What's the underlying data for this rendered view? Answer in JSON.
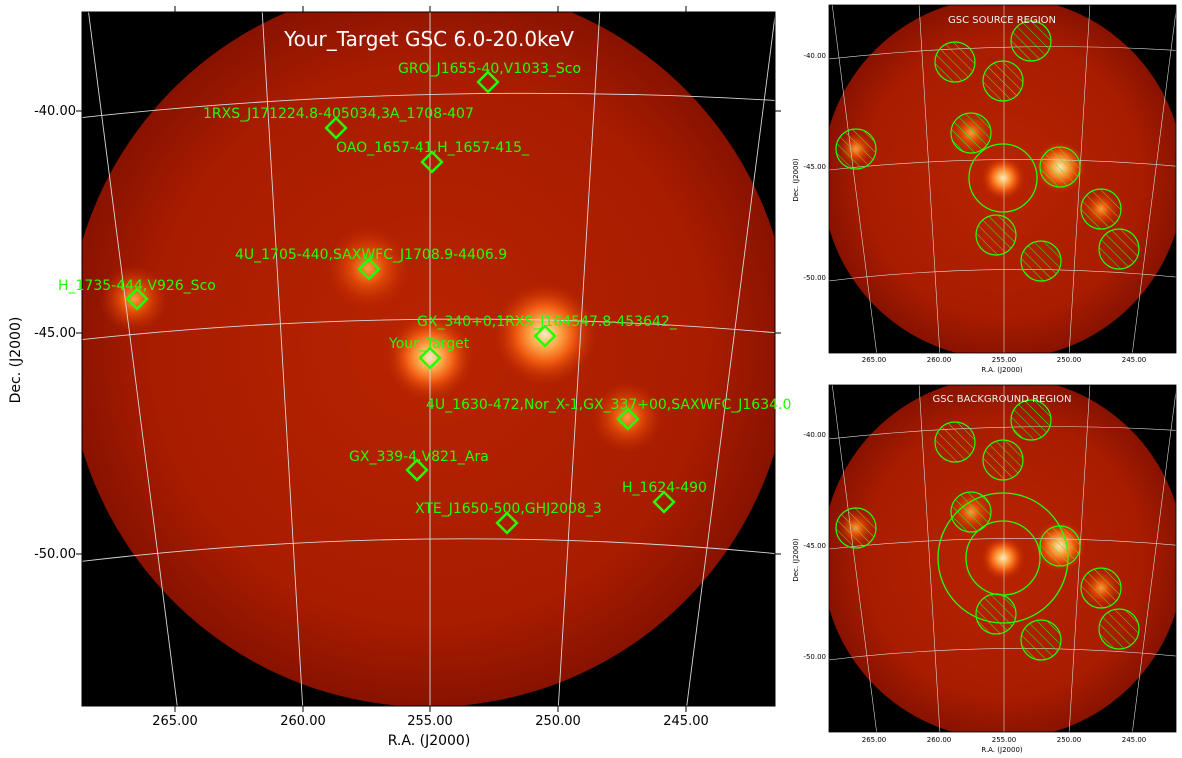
{
  "main_panel": {
    "title": "Your_Target GSC 6.0-20.0keV",
    "xlabel": "R.A. (J2000)",
    "ylabel": "Dec. (J2000)",
    "x_ticks": [
      "265.00",
      "260.00",
      "255.00",
      "250.00",
      "245.00"
    ],
    "y_ticks": [
      "-40.00",
      "-45.00",
      "-50.00"
    ],
    "sources": [
      {
        "label": "GRO_J1655-40,V1033_Sco"
      },
      {
        "label": "1RXS_J171224.8-405034,3A_1708-407"
      },
      {
        "label": "OAO_1657-41,H_1657-415_"
      },
      {
        "label": "4U_1705-440,SAXWFC_J1708.9-4406.9"
      },
      {
        "label": "H_1735-444,V926_Sco"
      },
      {
        "label": "GX_340+0,1RXS_J164547.8-453642_"
      },
      {
        "label": "Your_Target"
      },
      {
        "label": "4U_1630-472,Nor_X-1,GX_337+00,SAXWFC_J1634.0"
      },
      {
        "label": "GX_339-4,V821_Ara"
      },
      {
        "label": "H_1624-490"
      },
      {
        "label": "XTE_J1650-500,GHJ2008_3"
      }
    ]
  },
  "source_panel": {
    "title": "GSC SOURCE REGION",
    "xlabel": "R.A. (J2000)",
    "ylabel": "Dec. (J2000)",
    "x_ticks": [
      "265.00",
      "260.00",
      "255.00",
      "250.00",
      "245.00"
    ],
    "y_ticks": [
      "-40.00",
      "-45.00",
      "-50.00"
    ]
  },
  "background_panel": {
    "title": "GSC BACKGROUND REGION",
    "xlabel": "R.A. (J2000)",
    "ylabel": "Dec. (J2000)",
    "x_ticks": [
      "265.00",
      "260.00",
      "255.00",
      "250.00",
      "245.00"
    ],
    "y_ticks": [
      "-40.00",
      "-45.00",
      "-50.00"
    ]
  },
  "colors": {
    "marker": "#22ff00",
    "sky_background": "#b01a00",
    "field_outside": "#000000",
    "grid": "#d8d8d8"
  }
}
